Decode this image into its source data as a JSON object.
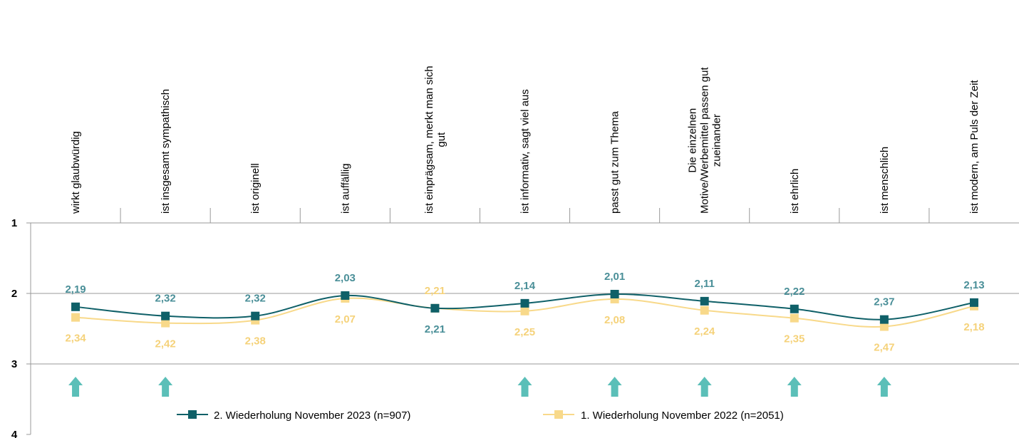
{
  "chart_data": {
    "type": "line",
    "categories": [
      "wirkt glaubwürdig",
      "ist insgesamt sympathisch",
      "ist originell",
      "ist auffällig",
      "ist einprägsam, merkt man sich gut",
      "ist informativ, sagt viel aus",
      "passt gut zum Thema",
      "Die einzelnen Motive/Werbemittel passen gut zueinander",
      "ist ehrlich",
      "ist menschlich",
      "ist modern, am Puls der Zeit"
    ],
    "series": [
      {
        "name": "2. Wiederholung November 2023 (n=907)",
        "color": "#0f6068",
        "label_color": "#4a8f98",
        "values": [
          2.19,
          2.32,
          2.32,
          2.03,
          2.21,
          2.14,
          2.01,
          2.11,
          2.22,
          2.37,
          2.13
        ],
        "value_labels": [
          "2,19",
          "2,32",
          "2,32",
          "2,03",
          "2,21",
          "2,14",
          "2,01",
          "2,11",
          "2,22",
          "2,37",
          "2,13"
        ]
      },
      {
        "name": "1. Wiederholung November 2022 (n=2051)",
        "color": "#f8d98a",
        "label_color": "#f5d27a",
        "values": [
          2.34,
          2.42,
          2.38,
          2.07,
          2.21,
          2.25,
          2.08,
          2.24,
          2.35,
          2.47,
          2.18
        ],
        "value_labels": [
          "2,34",
          "2,42",
          "2,38",
          "2,07",
          "2,21",
          "2,25",
          "2,08",
          "2,24",
          "2,35",
          "2,47",
          "2,18"
        ]
      }
    ],
    "ylim": [
      1,
      4
    ],
    "yticks": [
      1,
      2,
      3,
      4
    ],
    "y_inverted": true
  }
}
